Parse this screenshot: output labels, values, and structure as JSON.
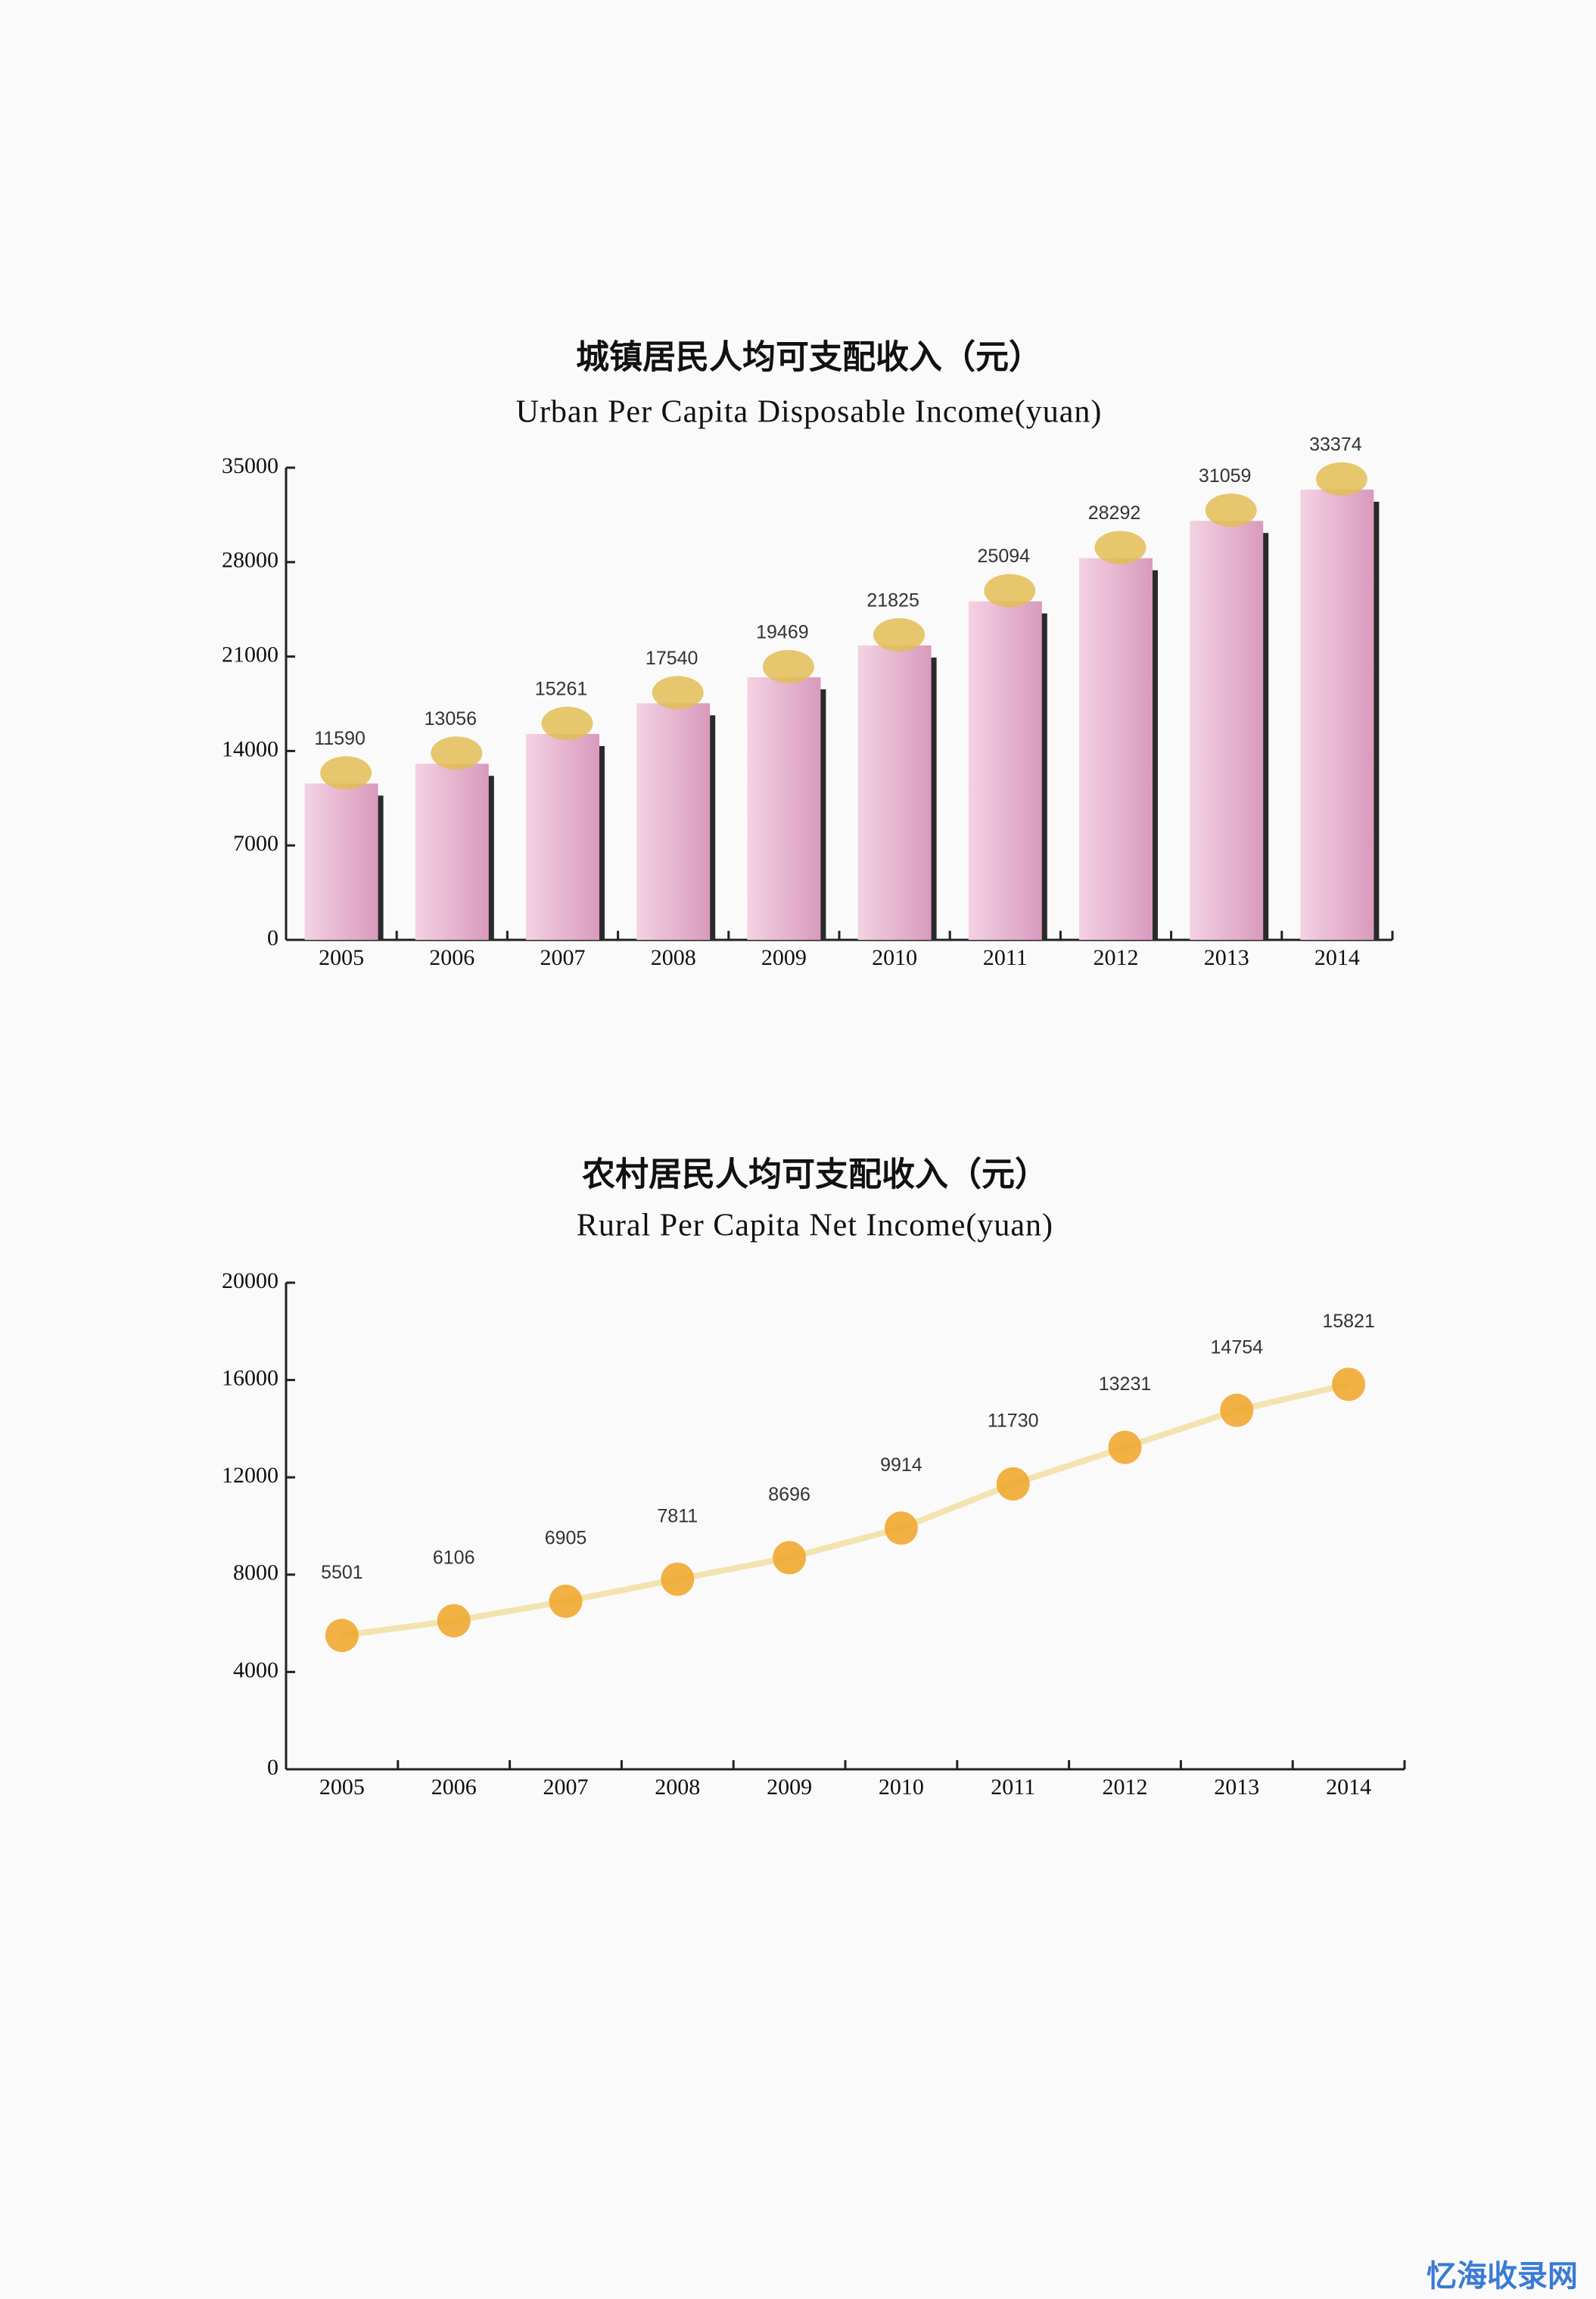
{
  "chart_data": [
    {
      "type": "bar",
      "title": "城镇居民人均可支配收入（元）",
      "subtitle": "Urban Per Capita Disposable Income(yuan)",
      "categories": [
        "2005",
        "2006",
        "2007",
        "2008",
        "2009",
        "2010",
        "2011",
        "2012",
        "2013",
        "2014"
      ],
      "values": [
        11590,
        13056,
        15261,
        17540,
        19469,
        21825,
        25094,
        28292,
        31059,
        33374
      ],
      "color": "#e7b3cf",
      "ylim": [
        0,
        35000
      ],
      "yticks": [
        0,
        7000,
        14000,
        21000,
        28000,
        35000
      ]
    },
    {
      "type": "line",
      "title": "农村居民人均可支配收入（元）",
      "subtitle": "Rural Per Capita Net Income(yuan)",
      "categories": [
        "2005",
        "2006",
        "2007",
        "2008",
        "2009",
        "2010",
        "2011",
        "2012",
        "2013",
        "2014"
      ],
      "values": [
        5501,
        6106,
        6905,
        7811,
        8696,
        9914,
        11730,
        13231,
        14754,
        15821
      ],
      "color": "#f0a830",
      "ylim": [
        0,
        20000
      ],
      "yticks": [
        0,
        4000,
        8000,
        12000,
        16000,
        20000
      ]
    }
  ],
  "watermark": "忆海收录网"
}
